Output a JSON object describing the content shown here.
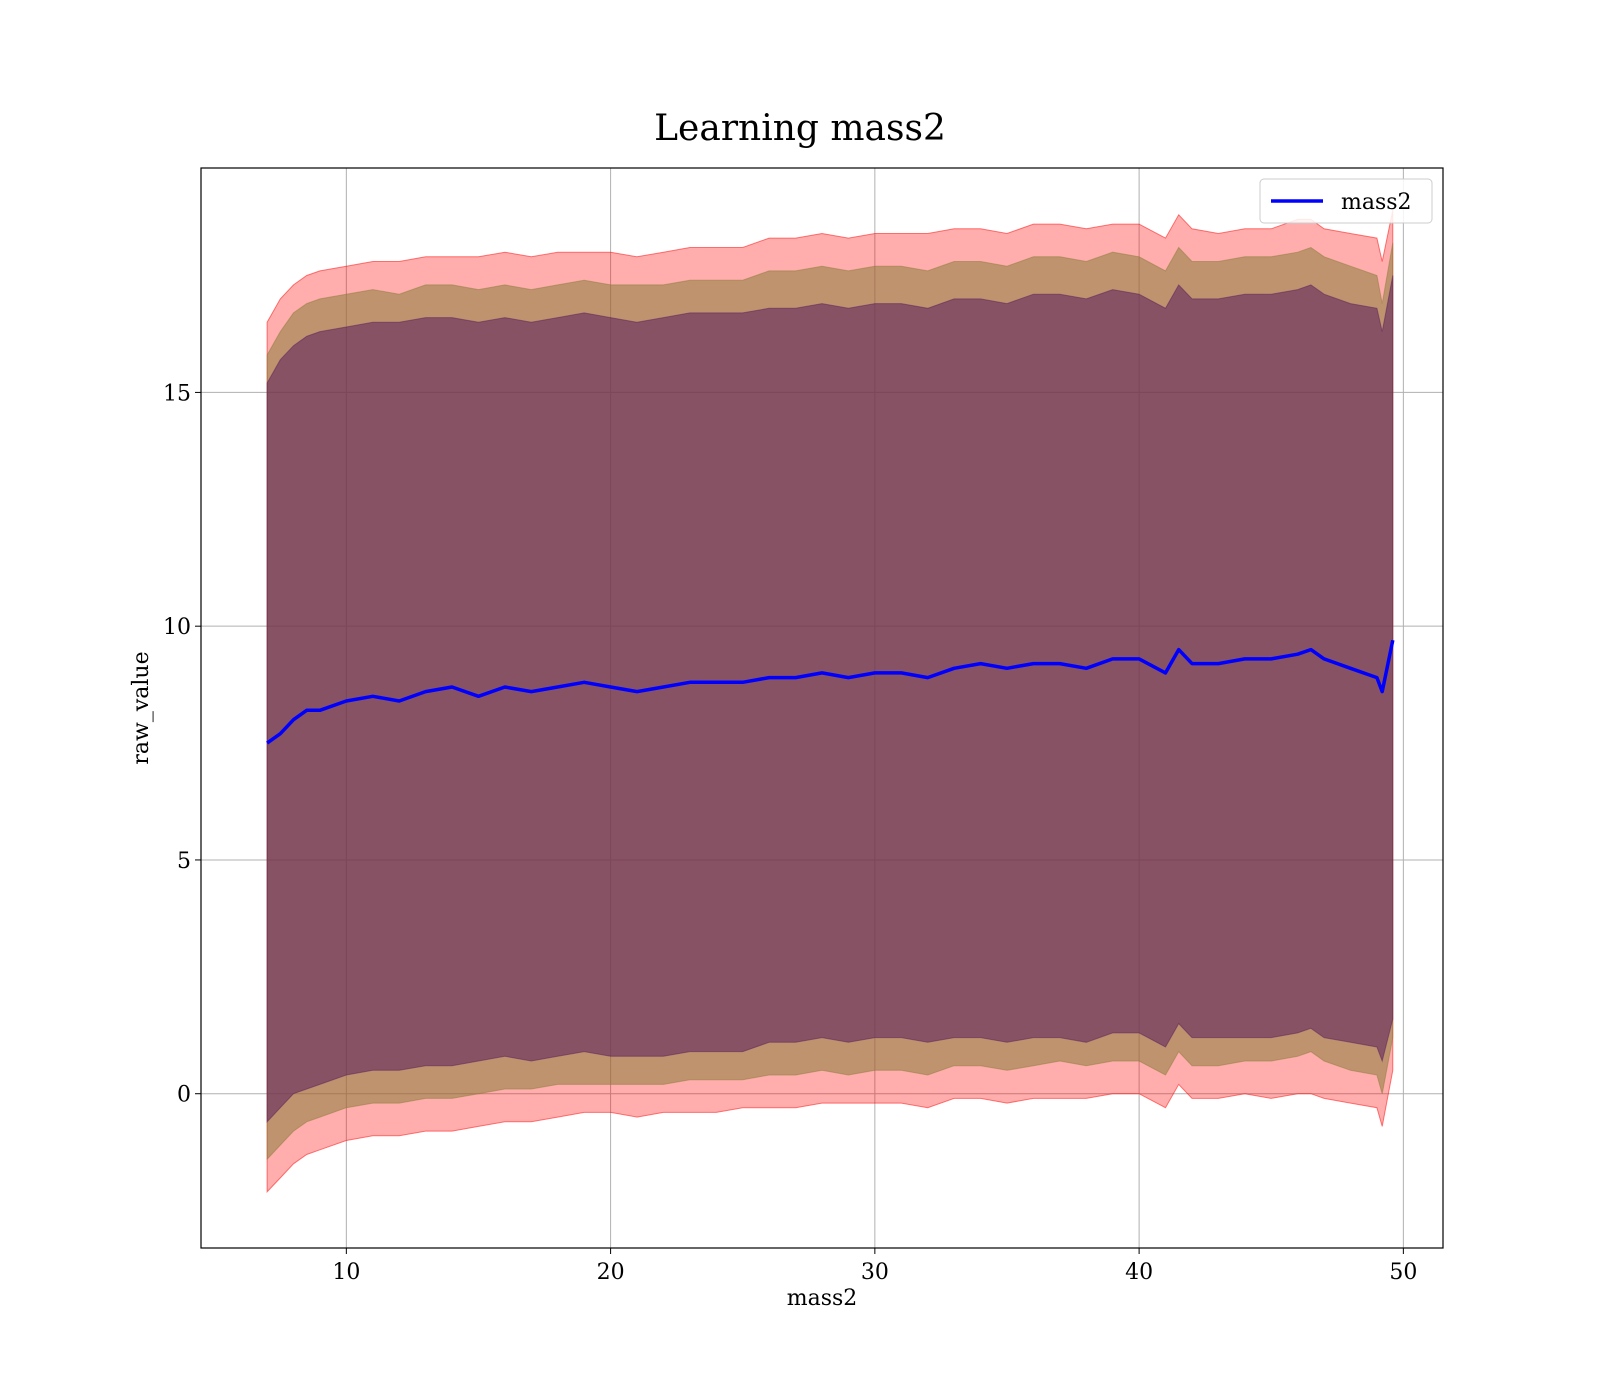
{
  "chart_data": {
    "type": "line",
    "title": "Learning mass2",
    "xlabel": "mass2",
    "ylabel": "raw_value",
    "xlim": [
      4.5,
      51.5
    ],
    "ylim": [
      -3.3,
      19.8
    ],
    "xticks": [
      10,
      20,
      30,
      40,
      50
    ],
    "yticks": [
      0,
      5,
      10,
      15
    ],
    "grid": true,
    "legend_position": "top-right",
    "colors": {
      "line": "#0000ff",
      "outer_band": "#ff0000",
      "middle_band": "#8b7d3a",
      "inner_band": "#5a1e5c"
    },
    "series": [
      {
        "name": "mass2",
        "x": [
          7.0,
          7.5,
          8.0,
          8.5,
          9.0,
          10,
          11,
          12,
          13,
          14,
          15,
          16,
          17,
          18,
          19,
          20,
          21,
          22,
          23,
          24,
          25,
          26,
          27,
          28,
          29,
          30,
          31,
          32,
          33,
          34,
          35,
          36,
          37,
          38,
          39,
          40,
          41,
          41.5,
          42,
          43,
          44,
          45,
          46,
          46.5,
          47,
          48,
          49,
          49.2,
          49.6
        ],
        "y": [
          7.5,
          7.7,
          8.0,
          8.2,
          8.2,
          8.4,
          8.5,
          8.4,
          8.6,
          8.7,
          8.5,
          8.7,
          8.6,
          8.7,
          8.8,
          8.7,
          8.6,
          8.7,
          8.8,
          8.8,
          8.8,
          8.9,
          8.9,
          9.0,
          8.9,
          9.0,
          9.0,
          8.9,
          9.1,
          9.2,
          9.1,
          9.2,
          9.2,
          9.1,
          9.3,
          9.3,
          9.0,
          9.5,
          9.2,
          9.2,
          9.3,
          9.3,
          9.4,
          9.5,
          9.3,
          9.1,
          8.9,
          8.6,
          9.7
        ]
      }
    ],
    "bands": [
      {
        "role": "outer",
        "x": [
          7.0,
          7.5,
          8.0,
          8.5,
          9.0,
          10,
          11,
          12,
          13,
          14,
          15,
          16,
          17,
          18,
          19,
          20,
          21,
          22,
          23,
          24,
          25,
          26,
          27,
          28,
          29,
          30,
          31,
          32,
          33,
          34,
          35,
          36,
          37,
          38,
          39,
          40,
          41,
          41.5,
          42,
          43,
          44,
          45,
          46,
          46.5,
          47,
          48,
          49,
          49.2,
          49.6
        ],
        "lower": [
          -2.1,
          -1.8,
          -1.5,
          -1.3,
          -1.2,
          -1.0,
          -0.9,
          -0.9,
          -0.8,
          -0.8,
          -0.7,
          -0.6,
          -0.6,
          -0.5,
          -0.4,
          -0.4,
          -0.5,
          -0.4,
          -0.4,
          -0.4,
          -0.3,
          -0.3,
          -0.3,
          -0.2,
          -0.2,
          -0.2,
          -0.2,
          -0.3,
          -0.1,
          -0.1,
          -0.2,
          -0.1,
          -0.1,
          -0.1,
          0.0,
          0.0,
          -0.3,
          0.2,
          -0.1,
          -0.1,
          0.0,
          -0.1,
          0.0,
          0.0,
          -0.1,
          -0.2,
          -0.3,
          -0.7,
          0.5
        ],
        "upper": [
          16.5,
          17.0,
          17.3,
          17.5,
          17.6,
          17.7,
          17.8,
          17.8,
          17.9,
          17.9,
          17.9,
          18.0,
          17.9,
          18.0,
          18.0,
          18.0,
          17.9,
          18.0,
          18.1,
          18.1,
          18.1,
          18.3,
          18.3,
          18.4,
          18.3,
          18.4,
          18.4,
          18.4,
          18.5,
          18.5,
          18.4,
          18.6,
          18.6,
          18.5,
          18.6,
          18.6,
          18.3,
          18.8,
          18.5,
          18.4,
          18.5,
          18.5,
          18.7,
          18.7,
          18.5,
          18.4,
          18.3,
          17.8,
          18.9
        ]
      },
      {
        "role": "middle",
        "x": [
          7.0,
          7.5,
          8.0,
          8.5,
          9.0,
          10,
          11,
          12,
          13,
          14,
          15,
          16,
          17,
          18,
          19,
          20,
          21,
          22,
          23,
          24,
          25,
          26,
          27,
          28,
          29,
          30,
          31,
          32,
          33,
          34,
          35,
          36,
          37,
          38,
          39,
          40,
          41,
          41.5,
          42,
          43,
          44,
          45,
          46,
          46.5,
          47,
          48,
          49,
          49.2,
          49.6
        ],
        "lower": [
          -1.4,
          -1.1,
          -0.8,
          -0.6,
          -0.5,
          -0.3,
          -0.2,
          -0.2,
          -0.1,
          -0.1,
          0.0,
          0.1,
          0.1,
          0.2,
          0.2,
          0.2,
          0.2,
          0.2,
          0.3,
          0.3,
          0.3,
          0.4,
          0.4,
          0.5,
          0.4,
          0.5,
          0.5,
          0.4,
          0.6,
          0.6,
          0.5,
          0.6,
          0.7,
          0.6,
          0.7,
          0.7,
          0.4,
          0.9,
          0.6,
          0.6,
          0.7,
          0.7,
          0.8,
          0.9,
          0.7,
          0.5,
          0.4,
          0.0,
          1.2
        ],
        "upper": [
          15.8,
          16.3,
          16.7,
          16.9,
          17.0,
          17.1,
          17.2,
          17.1,
          17.3,
          17.3,
          17.2,
          17.3,
          17.2,
          17.3,
          17.4,
          17.3,
          17.3,
          17.3,
          17.4,
          17.4,
          17.4,
          17.6,
          17.6,
          17.7,
          17.6,
          17.7,
          17.7,
          17.6,
          17.8,
          17.8,
          17.7,
          17.9,
          17.9,
          17.8,
          18.0,
          17.9,
          17.6,
          18.1,
          17.8,
          17.8,
          17.9,
          17.9,
          18.0,
          18.1,
          17.9,
          17.7,
          17.5,
          16.9,
          18.2
        ]
      },
      {
        "role": "inner",
        "x": [
          7.0,
          7.5,
          8.0,
          8.5,
          9.0,
          10,
          11,
          12,
          13,
          14,
          15,
          16,
          17,
          18,
          19,
          20,
          21,
          22,
          23,
          24,
          25,
          26,
          27,
          28,
          29,
          30,
          31,
          32,
          33,
          34,
          35,
          36,
          37,
          38,
          39,
          40,
          41,
          41.5,
          42,
          43,
          44,
          45,
          46,
          46.5,
          47,
          48,
          49,
          49.2,
          49.6
        ],
        "lower": [
          -0.6,
          -0.3,
          0.0,
          0.1,
          0.2,
          0.4,
          0.5,
          0.5,
          0.6,
          0.6,
          0.7,
          0.8,
          0.7,
          0.8,
          0.9,
          0.8,
          0.8,
          0.8,
          0.9,
          0.9,
          0.9,
          1.1,
          1.1,
          1.2,
          1.1,
          1.2,
          1.2,
          1.1,
          1.2,
          1.2,
          1.1,
          1.2,
          1.2,
          1.1,
          1.3,
          1.3,
          1.0,
          1.5,
          1.2,
          1.2,
          1.2,
          1.2,
          1.3,
          1.4,
          1.2,
          1.1,
          1.0,
          0.7,
          1.6
        ],
        "upper": [
          15.2,
          15.7,
          16.0,
          16.2,
          16.3,
          16.4,
          16.5,
          16.5,
          16.6,
          16.6,
          16.5,
          16.6,
          16.5,
          16.6,
          16.7,
          16.6,
          16.5,
          16.6,
          16.7,
          16.7,
          16.7,
          16.8,
          16.8,
          16.9,
          16.8,
          16.9,
          16.9,
          16.8,
          17.0,
          17.0,
          16.9,
          17.1,
          17.1,
          17.0,
          17.2,
          17.1,
          16.8,
          17.3,
          17.0,
          17.0,
          17.1,
          17.1,
          17.2,
          17.3,
          17.1,
          16.9,
          16.8,
          16.3,
          17.5
        ]
      }
    ]
  }
}
